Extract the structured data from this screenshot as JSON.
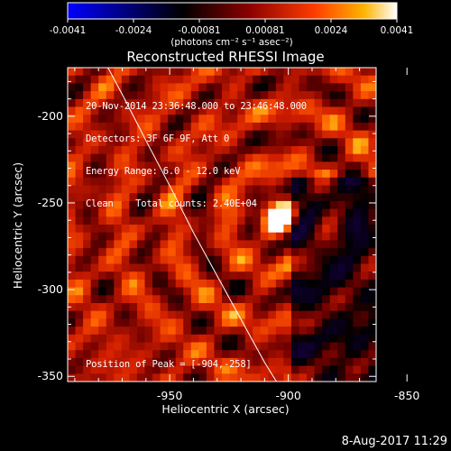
{
  "colorbar": {
    "tick_labels": [
      "-0.0041",
      "-0.0024",
      "-0.00081",
      "0.00081",
      "0.0024",
      "0.0041"
    ],
    "units_label": "(photons cm⁻² s⁻¹ asec⁻²)",
    "colors": [
      "#0000ff",
      "#000000",
      "#8b0000",
      "#ff3c00",
      "#ffb400",
      "#ffffff"
    ]
  },
  "chart_data": {
    "type": "heatmap",
    "title": "Reconstructed RHESSI Image",
    "xlabel": "Heliocentric X (arcsec)",
    "ylabel": "Heliocentric Y (arcsec)",
    "xlim": [
      -993,
      -863
    ],
    "ylim": [
      -353,
      -172
    ],
    "xticks": [
      -950,
      -900,
      -850
    ],
    "xtick_labels": [
      "-950",
      "-900",
      "-850"
    ],
    "yticks": [
      -350,
      -300,
      -250,
      -200
    ],
    "ytick_labels": [
      "-350",
      "-300",
      "-250",
      "-200"
    ],
    "value_range": [
      -0.0041,
      0.0041
    ],
    "peak": {
      "x": -904,
      "y": -258,
      "value": 0.0041
    },
    "limb_curve": {
      "x": [
        -976,
        -969,
        -960,
        -950,
        -940,
        -930,
        -920,
        -910,
        -905
      ],
      "y": [
        -172,
        -190,
        -214,
        -240,
        -267,
        -292,
        -317,
        -342,
        -353
      ]
    }
  },
  "info_lines": [
    "20-Nov-2014 23:36:48.000 to 23:46:48.000",
    "Detectors: 3F 6F 9F, Att 0",
    "Energy Range: 6.0 - 12.0 keV",
    "Clean    Total counts: 2.40E+04"
  ],
  "peak_label": "Position of Peak = [-904,-258]",
  "footer_date": "8-Aug-2017 11:29"
}
